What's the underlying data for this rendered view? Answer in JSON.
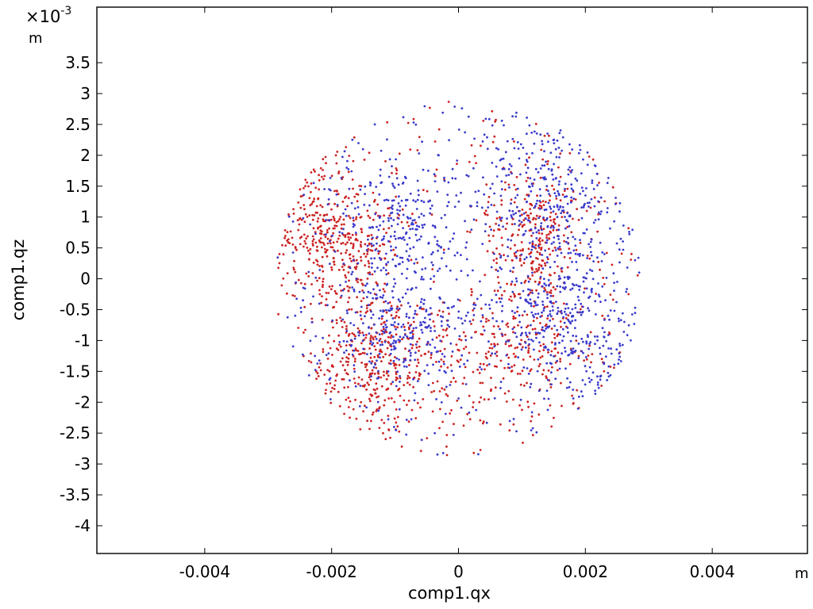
{
  "chart_data": {
    "type": "scatter",
    "xlabel": "comp1.qx",
    "ylabel": "comp1.qz",
    "x_unit": "m",
    "y_unit": "m",
    "y_multiplier": "×10",
    "y_multiplier_exponent": "-3",
    "xlim": [
      -0.0057,
      0.0055
    ],
    "ylim": [
      -4.45,
      4.4
    ],
    "x_ticks": [
      "-0.004",
      "-0.002",
      "0",
      "0.002",
      "0.004"
    ],
    "x_tick_values": [
      -0.004,
      -0.002,
      0,
      0.002,
      0.004
    ],
    "y_ticks": [
      "3.5",
      "3",
      "2.5",
      "2",
      "1.5",
      "1",
      "0.5",
      "0",
      "-0.5",
      "-1",
      "-1.5",
      "-2",
      "-2.5",
      "-3",
      "-3.5",
      "-4"
    ],
    "y_tick_values": [
      3.5,
      3,
      2.5,
      2,
      1.5,
      1,
      0.5,
      0,
      -0.5,
      -1,
      -1.5,
      -2,
      -2.5,
      -3,
      -3.5,
      -4
    ],
    "grid": false,
    "legend": "none",
    "disk_radius": 0.0029,
    "series": [
      {
        "color": "#cc2222",
        "clusters": [
          {
            "cx": -0.0019,
            "cz": 0.5,
            "sx": 0.0005,
            "sz": 0.45,
            "n": 300
          },
          {
            "cx": -0.0013,
            "cz": -1.4,
            "sx": 0.0006,
            "sz": 0.6,
            "n": 360
          },
          {
            "cx": 0.0012,
            "cz": 0.65,
            "sx": 0.0004,
            "sz": 0.55,
            "n": 260
          },
          {
            "cx": 0.0008,
            "cz": -1.1,
            "sx": 0.0006,
            "sz": 0.45,
            "n": 200
          },
          {
            "cx": -0.0024,
            "cz": 1.6,
            "sx": 0.0004,
            "sz": 0.5,
            "n": 60
          }
        ],
        "uniform_n": 300
      },
      {
        "color": "#3a3acc",
        "clusters": [
          {
            "cx": -0.0009,
            "cz": 0.8,
            "sx": 0.0005,
            "sz": 0.55,
            "n": 230
          },
          {
            "cx": -0.0009,
            "cz": -0.7,
            "sx": 0.0005,
            "sz": 0.45,
            "n": 230
          },
          {
            "cx": 0.0015,
            "cz": 1.3,
            "sx": 0.0006,
            "sz": 0.7,
            "n": 300
          },
          {
            "cx": 0.0014,
            "cz": -0.6,
            "sx": 0.0006,
            "sz": 0.5,
            "n": 280
          },
          {
            "cx": 0.0024,
            "cz": -1.6,
            "sx": 0.0004,
            "sz": 0.6,
            "n": 70
          }
        ],
        "uniform_n": 330
      }
    ]
  }
}
